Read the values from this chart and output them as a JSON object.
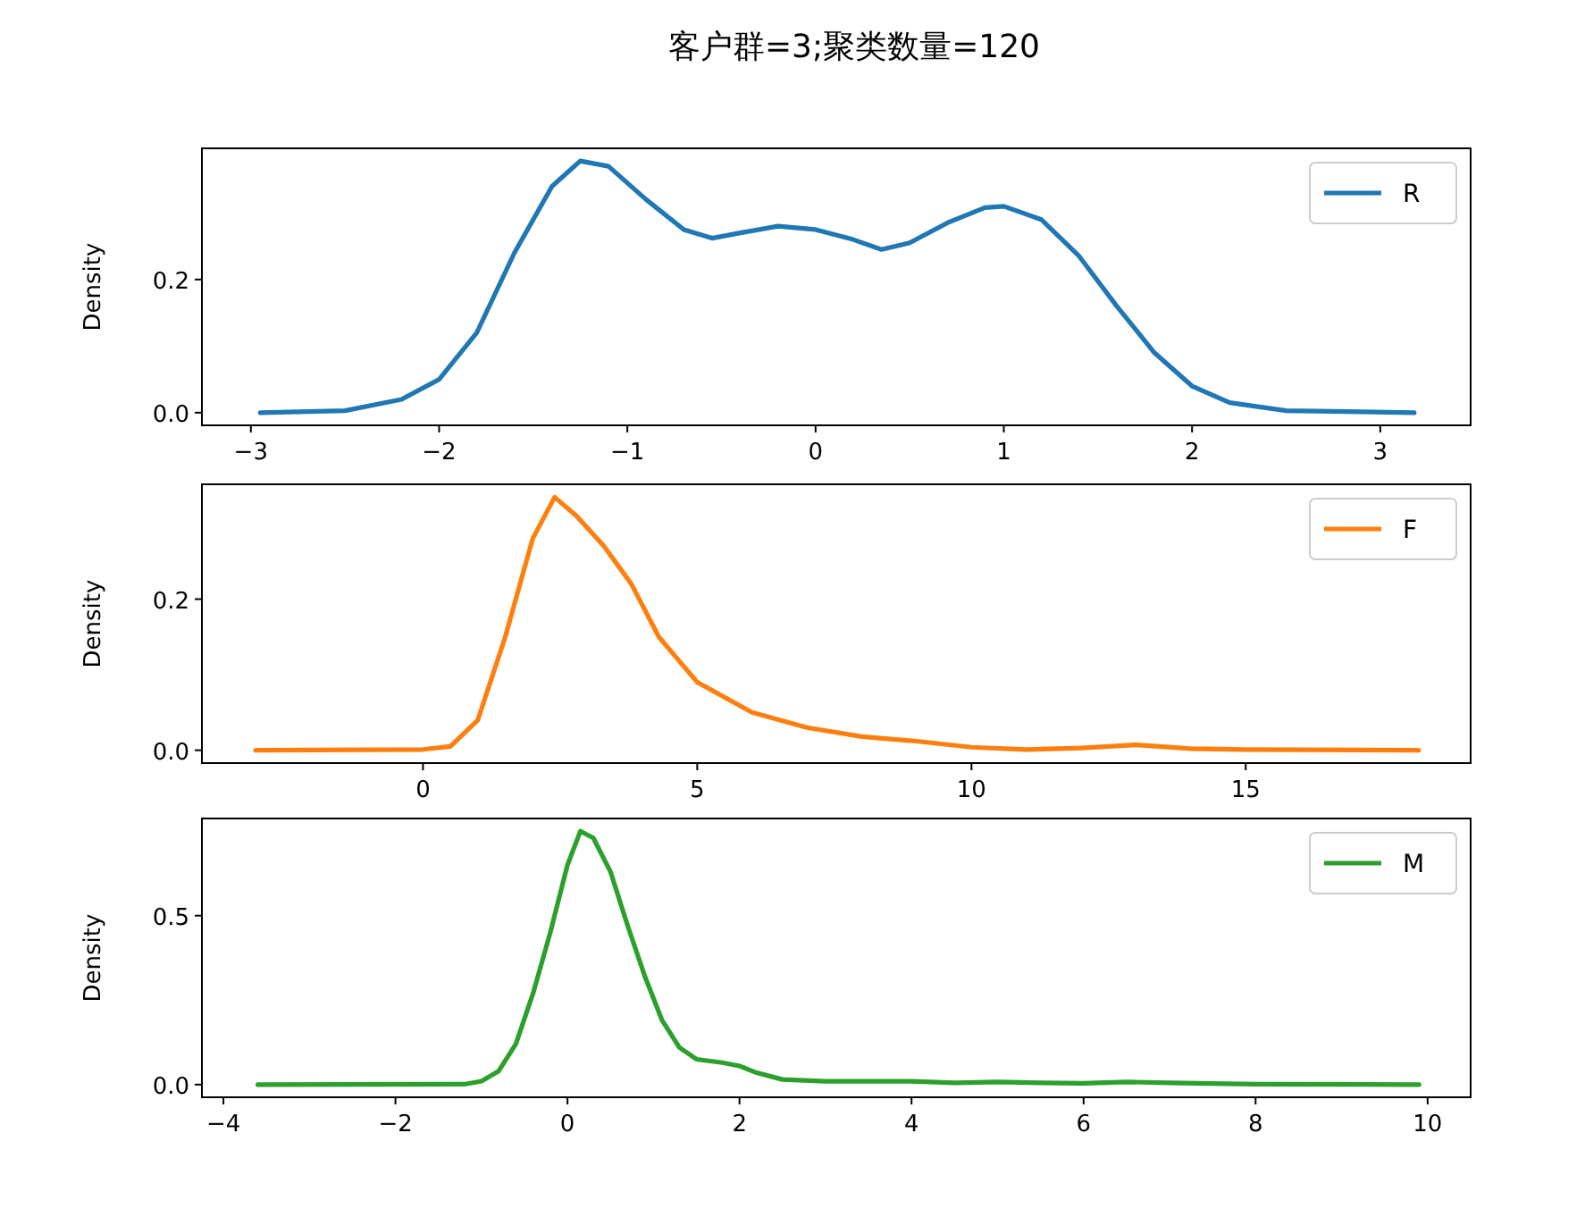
{
  "chart_data": [
    {
      "type": "line",
      "title": "客户群=3;聚类数量=120",
      "ylabel": "Density",
      "legend": "top right",
      "xlim": [
        -3.26,
        3.48
      ],
      "ylim": [
        -0.019,
        0.397
      ],
      "xticks": [
        {
          "value": -3,
          "label": "−3"
        },
        {
          "value": -2,
          "label": "−2"
        },
        {
          "value": -1,
          "label": "−1"
        },
        0,
        1,
        2,
        3
      ],
      "yticks": [
        {
          "value": 0,
          "label": "0.0"
        },
        {
          "value": 0.2,
          "label": "0.2"
        }
      ],
      "series": [
        {
          "name": "R",
          "color": "#1f77b4",
          "x": [
            -2.95,
            -2.5,
            -2.2,
            -2,
            -1.8,
            -1.6,
            -1.4,
            -1.25,
            -1.1,
            -0.9,
            -0.7,
            -0.55,
            -0.4,
            -0.2,
            0,
            0.2,
            0.35,
            0.5,
            0.7,
            0.9,
            1.0,
            1.2,
            1.4,
            1.6,
            1.8,
            2.0,
            2.2,
            2.5,
            3.18
          ],
          "values": [
            0,
            0.003,
            0.02,
            0.05,
            0.12,
            0.24,
            0.34,
            0.378,
            0.37,
            0.32,
            0.275,
            0.262,
            0.27,
            0.28,
            0.275,
            0.26,
            0.245,
            0.255,
            0.285,
            0.308,
            0.31,
            0.29,
            0.235,
            0.16,
            0.09,
            0.04,
            0.015,
            0.003,
            0
          ]
        }
      ]
    },
    {
      "type": "line",
      "ylabel": "Density",
      "legend": "top right",
      "xlim": [
        -4.03,
        19.1
      ],
      "ylim": [
        -0.017,
        0.352
      ],
      "xticks": [
        0,
        5,
        10,
        15
      ],
      "yticks": [
        {
          "value": 0,
          "label": "0.0"
        },
        {
          "value": 0.2,
          "label": "0.2"
        }
      ],
      "series": [
        {
          "name": "F",
          "color": "#ff7f0e",
          "x": [
            -3.05,
            0,
            0.5,
            1,
            1.5,
            2,
            2.4,
            2.8,
            3.3,
            3.8,
            4.3,
            5,
            6,
            7,
            8,
            9,
            10,
            11,
            12,
            13,
            14,
            15,
            18.15
          ],
          "values": [
            0,
            0.001,
            0.005,
            0.04,
            0.15,
            0.28,
            0.335,
            0.31,
            0.27,
            0.22,
            0.15,
            0.09,
            0.05,
            0.03,
            0.018,
            0.012,
            0.004,
            0.001,
            0.003,
            0.007,
            0.002,
            0.001,
            0
          ]
        }
      ]
    },
    {
      "type": "line",
      "ylabel": "Density",
      "legend": "top right",
      "xlim": [
        -4.25,
        10.5
      ],
      "ylim": [
        -0.0375,
        0.7875
      ],
      "xticks": [
        {
          "value": -4,
          "label": "−4"
        },
        {
          "value": -2,
          "label": "−2"
        },
        0,
        2,
        4,
        6,
        8,
        10
      ],
      "yticks": [
        {
          "value": 0,
          "label": "0.0"
        },
        {
          "value": 0.5,
          "label": "0.5"
        }
      ],
      "series": [
        {
          "name": "M",
          "color": "#2ca02c",
          "x": [
            -3.6,
            -1.2,
            -1,
            -0.8,
            -0.6,
            -0.4,
            -0.2,
            0,
            0.15,
            0.3,
            0.5,
            0.7,
            0.9,
            1.1,
            1.3,
            1.5,
            1.8,
            2.0,
            2.2,
            2.5,
            3,
            4,
            4.5,
            5,
            5.5,
            6,
            6.5,
            7,
            8,
            9.9
          ],
          "values": [
            0,
            0.001,
            0.01,
            0.04,
            0.12,
            0.27,
            0.45,
            0.65,
            0.75,
            0.73,
            0.63,
            0.47,
            0.32,
            0.19,
            0.11,
            0.075,
            0.065,
            0.055,
            0.035,
            0.015,
            0.01,
            0.01,
            0.005,
            0.008,
            0.005,
            0.004,
            0.008,
            0.005,
            0.001,
            0
          ]
        }
      ]
    }
  ]
}
